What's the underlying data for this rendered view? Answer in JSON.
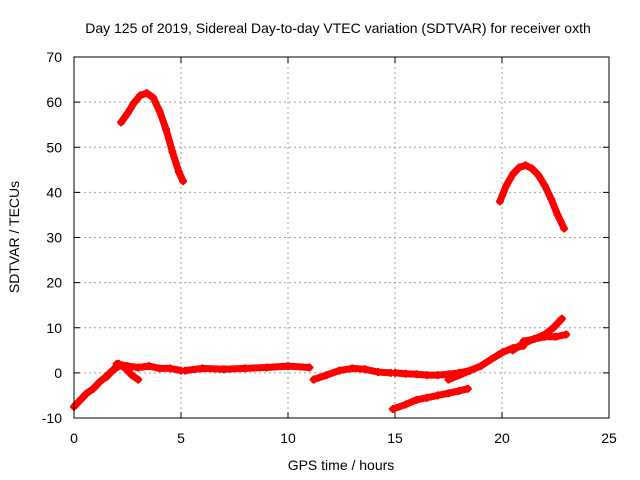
{
  "chart_data": {
    "type": "scatter",
    "title": "Day 125 of 2019, Sidereal Day-to-day VTEC variation (SDTVAR) for receiver oxth",
    "xlabel": "GPS time / hours",
    "ylabel": "SDTVAR / TECUs",
    "xlim": [
      0,
      25
    ],
    "ylim": [
      -10,
      70
    ],
    "xticks": [
      0,
      5,
      10,
      15,
      20,
      25
    ],
    "yticks": [
      -10,
      0,
      10,
      20,
      30,
      40,
      50,
      60,
      70
    ],
    "grid": true,
    "marker": "plus",
    "series_color": "#ff0000",
    "series": [
      {
        "name": "arc-high-early",
        "x": [
          2.2,
          2.5,
          2.8,
          3.1,
          3.4,
          3.7,
          4.0,
          4.3,
          4.6,
          4.9,
          5.1
        ],
        "y": [
          55.5,
          57.5,
          59.8,
          61.5,
          62.0,
          61.0,
          58.0,
          54.0,
          49.0,
          44.5,
          42.5
        ]
      },
      {
        "name": "arc-high-late",
        "x": [
          19.9,
          20.2,
          20.5,
          20.8,
          21.1,
          21.4,
          21.7,
          22.0,
          22.3,
          22.6,
          22.9
        ],
        "y": [
          38.0,
          41.5,
          44.0,
          45.5,
          46.0,
          45.3,
          43.8,
          41.5,
          38.5,
          35.0,
          32.0
        ]
      },
      {
        "name": "rise-from-midnight",
        "x": [
          0.0,
          0.3,
          0.6,
          0.9,
          1.2,
          1.5,
          1.8,
          2.1
        ],
        "y": [
          -7.5,
          -6.0,
          -4.5,
          -3.5,
          -2.0,
          -0.8,
          0.5,
          1.5
        ]
      },
      {
        "name": "dip-2-3h",
        "x": [
          1.5,
          1.8,
          2.1,
          2.4,
          2.7,
          3.0
        ],
        "y": [
          -1.0,
          0.5,
          2.0,
          1.0,
          -0.5,
          -1.5
        ]
      },
      {
        "name": "flat-2-6h",
        "x": [
          2.0,
          2.5,
          3.0,
          3.5,
          4.0,
          4.5,
          5.0
        ],
        "y": [
          2.0,
          1.5,
          1.2,
          1.5,
          1.0,
          1.0,
          0.5
        ]
      },
      {
        "name": "flat-5-11h",
        "x": [
          5.2,
          6.0,
          7.0,
          8.0,
          9.0,
          10.0,
          11.0
        ],
        "y": [
          0.5,
          1.0,
          0.8,
          1.0,
          1.2,
          1.5,
          1.2
        ]
      },
      {
        "name": "flat-11-15h",
        "x": [
          11.2,
          11.8,
          12.4,
          13.0,
          13.6,
          14.2,
          14.8
        ],
        "y": [
          -1.5,
          -0.5,
          0.5,
          1.0,
          0.8,
          0.2,
          0.0
        ]
      },
      {
        "name": "flat-15-19h",
        "x": [
          15.0,
          15.5,
          16.0,
          16.5,
          17.0,
          17.5,
          18.0,
          18.5
        ],
        "y": [
          0.0,
          -0.2,
          -0.3,
          -0.5,
          -0.5,
          -0.3,
          0.0,
          0.5
        ]
      },
      {
        "name": "low-15-18h",
        "x": [
          14.9,
          15.5,
          16.0,
          16.5,
          17.0,
          17.5,
          18.0,
          18.4
        ],
        "y": [
          -8.0,
          -7.0,
          -6.0,
          -5.5,
          -5.0,
          -4.5,
          -4.0,
          -3.5
        ]
      },
      {
        "name": "rise-17-21h",
        "x": [
          17.5,
          18.0,
          18.5,
          19.0,
          19.5,
          20.0,
          20.5,
          21.0
        ],
        "y": [
          -1.5,
          -0.5,
          0.5,
          1.5,
          3.0,
          4.5,
          5.5,
          6.0
        ]
      },
      {
        "name": "rise-late",
        "x": [
          20.5,
          21.0,
          21.5,
          22.0,
          22.4,
          22.8
        ],
        "y": [
          5.0,
          6.5,
          7.5,
          8.5,
          10.0,
          12.0
        ]
      },
      {
        "name": "band-late",
        "x": [
          21.0,
          21.5,
          22.0,
          22.5,
          23.0
        ],
        "y": [
          7.0,
          7.5,
          8.0,
          8.0,
          8.5
        ]
      }
    ]
  }
}
